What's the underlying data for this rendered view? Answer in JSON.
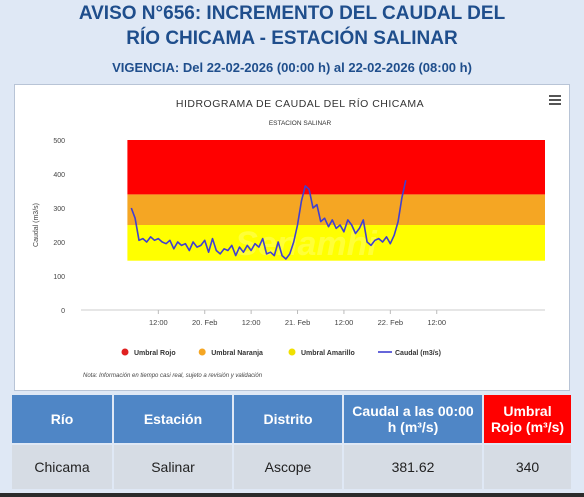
{
  "header": {
    "title_line1": "AVISO N°656: INCREMENTO DEL CAUDAL DEL",
    "title_line2": "RÍO CHICAMA - ESTACIÓN SALINAR",
    "vigencia": "VIGENCIA: Del 22-02-2026 (00:00 h) al 22-02-2026 (08:00 h)"
  },
  "watermark": "Senamhi",
  "menu_icon": "hamburger-menu-icon",
  "chart_data": {
    "type": "line",
    "title": "HIDROGRAMA DE CAUDAL DEL RÍO CHICAMA",
    "subtitle": "ESTACION SALINAR",
    "ylabel": "Caudal (m3/s)",
    "xlabel": "",
    "ylim": [
      0,
      500
    ],
    "yticks": [
      0,
      100,
      200,
      300,
      400,
      500
    ],
    "xlim": [
      -20,
      100
    ],
    "xticks": [
      {
        "x": 0,
        "label": "12:00"
      },
      {
        "x": 12,
        "label": "20. Feb"
      },
      {
        "x": 24,
        "label": "12:00"
      },
      {
        "x": 36,
        "label": "21. Feb"
      },
      {
        "x": 48,
        "label": "12:00"
      },
      {
        "x": 60,
        "label": "22. Feb"
      },
      {
        "x": 72,
        "label": "12:00"
      }
    ],
    "bands": [
      {
        "name": "Umbral Amarillo",
        "from": 145,
        "to": 250,
        "color": "#ffff00"
      },
      {
        "name": "Umbral Naranja",
        "from": 250,
        "to": 340,
        "color": "#f5a623"
      },
      {
        "name": "Umbral Rojo",
        "from": 340,
        "to": 500,
        "color": "#ff0000"
      }
    ],
    "legend": [
      {
        "label": "Umbral Rojo",
        "color": "#e02020",
        "kind": "dot"
      },
      {
        "label": "Umbral Naranja",
        "color": "#f5a623",
        "kind": "dot"
      },
      {
        "label": "Umbral Amarillo",
        "color": "#f0e000",
        "kind": "dot"
      },
      {
        "label": "Caudal (m3/s)",
        "color": "#4040d0",
        "kind": "line"
      }
    ],
    "legend_position": "bottom",
    "note": "Nota: Información en tiempo casi real, sujeto a revisión y validación",
    "series": [
      {
        "name": "Caudal (m3/s)",
        "color": "#4040d0",
        "x": [
          -7,
          -6,
          -5,
          -4,
          -3,
          -2,
          -1,
          0,
          1,
          2,
          3,
          4,
          5,
          6,
          7,
          8,
          9,
          10,
          11,
          12,
          13,
          14,
          15,
          16,
          17,
          18,
          19,
          20,
          21,
          22,
          23,
          24,
          25,
          26,
          27,
          28,
          29,
          30,
          31,
          32,
          33,
          34,
          35,
          36,
          37,
          38,
          39,
          40,
          41,
          42,
          43,
          44,
          45,
          46,
          47,
          48,
          49,
          50,
          51,
          52,
          53,
          54,
          55,
          56,
          57,
          58,
          59,
          60,
          61,
          62,
          63,
          64
        ],
        "y": [
          300,
          270,
          205,
          210,
          200,
          215,
          205,
          210,
          200,
          195,
          205,
          180,
          200,
          190,
          195,
          175,
          200,
          185,
          190,
          205,
          170,
          210,
          175,
          165,
          180,
          175,
          190,
          160,
          185,
          170,
          190,
          175,
          195,
          185,
          210,
          165,
          170,
          160,
          200,
          160,
          150,
          165,
          200,
          250,
          320,
          365,
          355,
          300,
          310,
          260,
          270,
          245,
          265,
          240,
          250,
          230,
          265,
          250,
          225,
          240,
          265,
          200,
          190,
          205,
          210,
          200,
          215,
          195,
          220,
          260,
          330,
          381.62
        ]
      }
    ]
  },
  "table": {
    "headers": [
      "Río",
      "Estación",
      "Distrito",
      "Caudal a las 00:00 h (m³/s)",
      "Umbral Rojo (m³/s)"
    ],
    "row": [
      "Chicama",
      "Salinar",
      "Ascope",
      "381.62",
      "340"
    ]
  }
}
